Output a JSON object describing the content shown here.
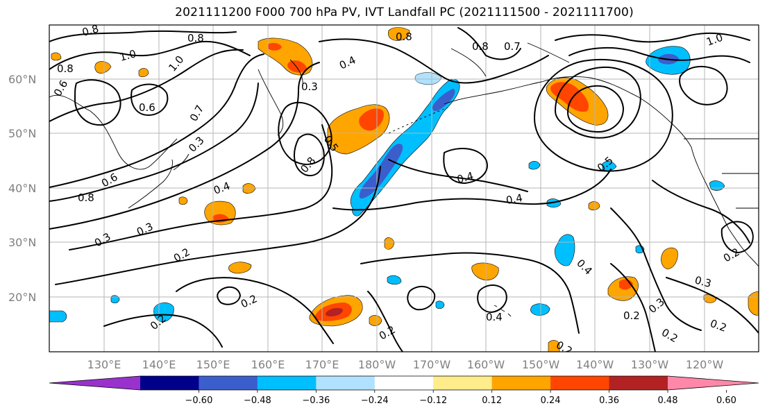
{
  "title": "2021111200 F000 700 hPa PV, IVT Landfall PC (2021111500 - 2021111700)",
  "lat_labels": [
    "60°N",
    "50°N",
    "40°N",
    "30°N",
    "20°N"
  ],
  "lon_labels": [
    "130°E",
    "140°E",
    "150°E",
    "160°E",
    "170°E",
    "180°W",
    "170°W",
    "160°W",
    "150°W",
    "140°W",
    "130°W",
    "120°W"
  ],
  "colorbar": {
    "colors": [
      "#9932CC",
      "#00008B",
      "#3A5FCD",
      "#00BFFF",
      "#B0E2FF",
      "#FFFFFF",
      "#FFEC8B",
      "#FFA500",
      "#FF4500",
      "#B22222",
      "#FF88AA"
    ],
    "tick_labels": [
      "−0.60",
      "−0.48",
      "−0.36",
      "−0.24",
      "−0.12",
      "0.12",
      "0.24",
      "0.36",
      "0.48",
      "0.60"
    ]
  },
  "contour_labels": [
    "0.8",
    "0.8",
    "1.0",
    "0.8",
    "1.0",
    "0.6",
    "0.3",
    "0.4",
    "0.7",
    "0.8",
    "1.0",
    "0.8",
    "0.7",
    "0.5",
    "0.3",
    "0.8",
    "0.4",
    "0.4",
    "0.4",
    "0.5",
    "0.3",
    "0.3",
    "0.2",
    "0.4",
    "0.3",
    "0.2",
    "0.2",
    "0.2",
    "0.2",
    "0.2",
    "0.4",
    "0.2",
    "0.3",
    "0.2",
    "0.2",
    "0.6",
    "0.8",
    "0.6"
  ]
}
